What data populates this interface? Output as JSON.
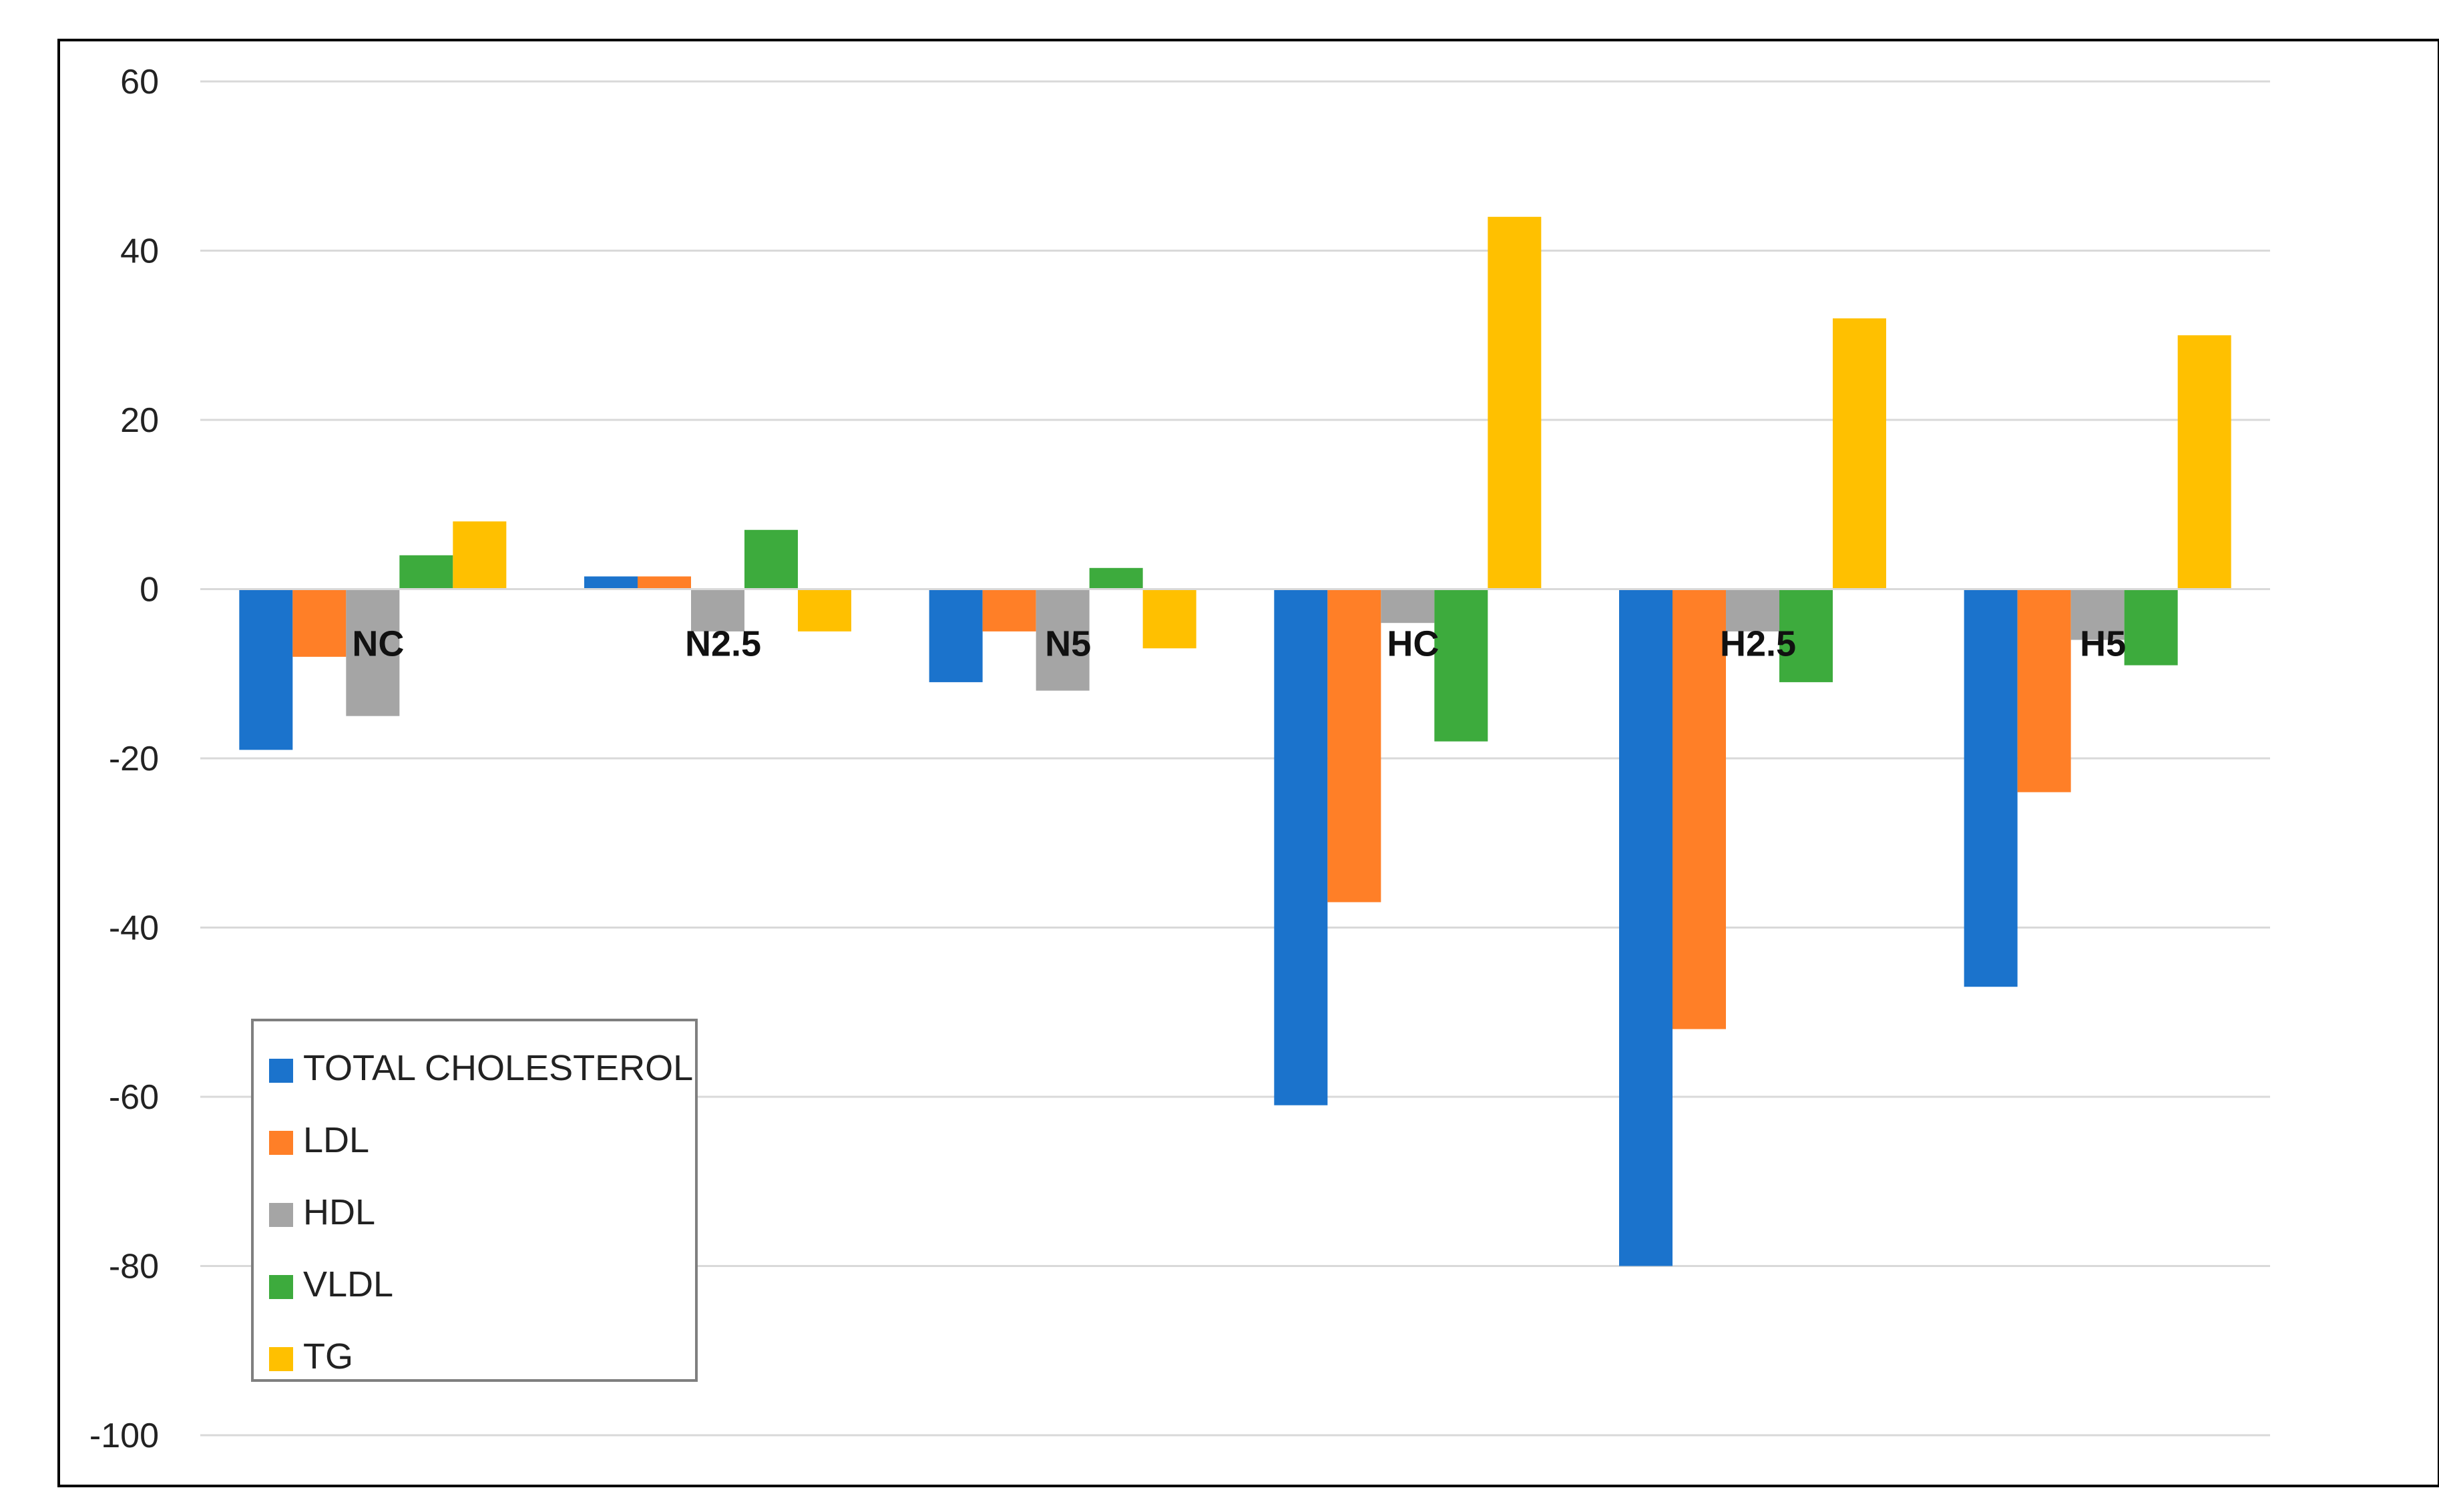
{
  "chart_data": {
    "type": "bar",
    "title": "",
    "xlabel": "",
    "ylabel": "",
    "ylim": [
      -100,
      60
    ],
    "yticks": [
      60,
      40,
      20,
      0,
      -20,
      -40,
      -60,
      -80,
      -100
    ],
    "grid": true,
    "legend_position": "bottom-left",
    "categories": [
      "NC",
      "N2.5",
      "N5",
      "HC",
      "H2.5",
      "H5"
    ],
    "series": [
      {
        "name": "TOTAL CHOLESTEROL",
        "color": "#1b73cc",
        "values": [
          -19,
          1.5,
          -11,
          -61,
          -80,
          -47
        ]
      },
      {
        "name": "LDL",
        "color": "#ff7f27",
        "values": [
          -8,
          1.5,
          -5,
          -37,
          -52,
          -24
        ]
      },
      {
        "name": "HDL",
        "color": "#a5a5a5",
        "values": [
          -15,
          -5,
          -12,
          -4,
          -5,
          -6
        ]
      },
      {
        "name": "VLDL",
        "color": "#3dab3d",
        "values": [
          4,
          7,
          2.5,
          -18,
          -11,
          -9
        ]
      },
      {
        "name": "TG",
        "color": "#ffc000",
        "values": [
          8,
          -5,
          -7,
          44,
          32,
          30
        ]
      }
    ]
  }
}
